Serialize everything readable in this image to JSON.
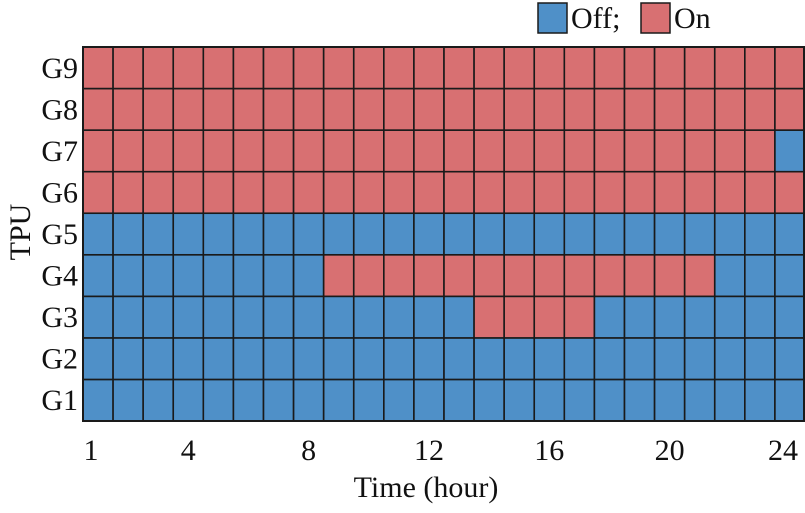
{
  "chart_data": {
    "type": "heatmap",
    "title": "",
    "xlabel": "Time (hour)",
    "ylabel": "TPU",
    "x": [
      1,
      2,
      3,
      4,
      5,
      6,
      7,
      8,
      9,
      10,
      11,
      12,
      13,
      14,
      15,
      16,
      17,
      18,
      19,
      20,
      21,
      22,
      23,
      24
    ],
    "x_ticks": [
      1,
      4,
      8,
      12,
      16,
      20,
      24
    ],
    "y_categories": [
      "G1",
      "G2",
      "G3",
      "G4",
      "G5",
      "G6",
      "G7",
      "G8",
      "G9"
    ],
    "legend": {
      "placement": "top-right",
      "entries": [
        {
          "label": "Off;",
          "value": 0,
          "color": "#4f90c8"
        },
        {
          "label": "On",
          "value": 1,
          "color": "#d87072"
        }
      ]
    },
    "colors": {
      "off": "#4f90c8",
      "on": "#d87072",
      "grid": "#1a1a1a"
    },
    "values": [
      [
        0,
        0,
        0,
        0,
        0,
        0,
        0,
        0,
        0,
        0,
        0,
        0,
        0,
        0,
        0,
        0,
        0,
        0,
        0,
        0,
        0,
        0,
        0,
        0
      ],
      [
        0,
        0,
        0,
        0,
        0,
        0,
        0,
        0,
        0,
        0,
        0,
        0,
        0,
        0,
        0,
        0,
        0,
        0,
        0,
        0,
        0,
        0,
        0,
        0
      ],
      [
        0,
        0,
        0,
        0,
        0,
        0,
        0,
        0,
        0,
        0,
        0,
        0,
        0,
        1,
        1,
        1,
        1,
        0,
        0,
        0,
        0,
        0,
        0,
        0
      ],
      [
        0,
        0,
        0,
        0,
        0,
        0,
        0,
        0,
        1,
        1,
        1,
        1,
        1,
        1,
        1,
        1,
        1,
        1,
        1,
        1,
        1,
        0,
        0,
        0
      ],
      [
        0,
        0,
        0,
        0,
        0,
        0,
        0,
        0,
        0,
        0,
        0,
        0,
        0,
        0,
        0,
        0,
        0,
        0,
        0,
        0,
        0,
        0,
        0,
        0
      ],
      [
        1,
        1,
        1,
        1,
        1,
        1,
        1,
        1,
        1,
        1,
        1,
        1,
        1,
        1,
        1,
        1,
        1,
        1,
        1,
        1,
        1,
        1,
        1,
        1
      ],
      [
        1,
        1,
        1,
        1,
        1,
        1,
        1,
        1,
        1,
        1,
        1,
        1,
        1,
        1,
        1,
        1,
        1,
        1,
        1,
        1,
        1,
        1,
        1,
        0
      ],
      [
        1,
        1,
        1,
        1,
        1,
        1,
        1,
        1,
        1,
        1,
        1,
        1,
        1,
        1,
        1,
        1,
        1,
        1,
        1,
        1,
        1,
        1,
        1,
        1
      ],
      [
        1,
        1,
        1,
        1,
        1,
        1,
        1,
        1,
        1,
        1,
        1,
        1,
        1,
        1,
        1,
        1,
        1,
        1,
        1,
        1,
        1,
        1,
        1,
        1
      ]
    ]
  }
}
